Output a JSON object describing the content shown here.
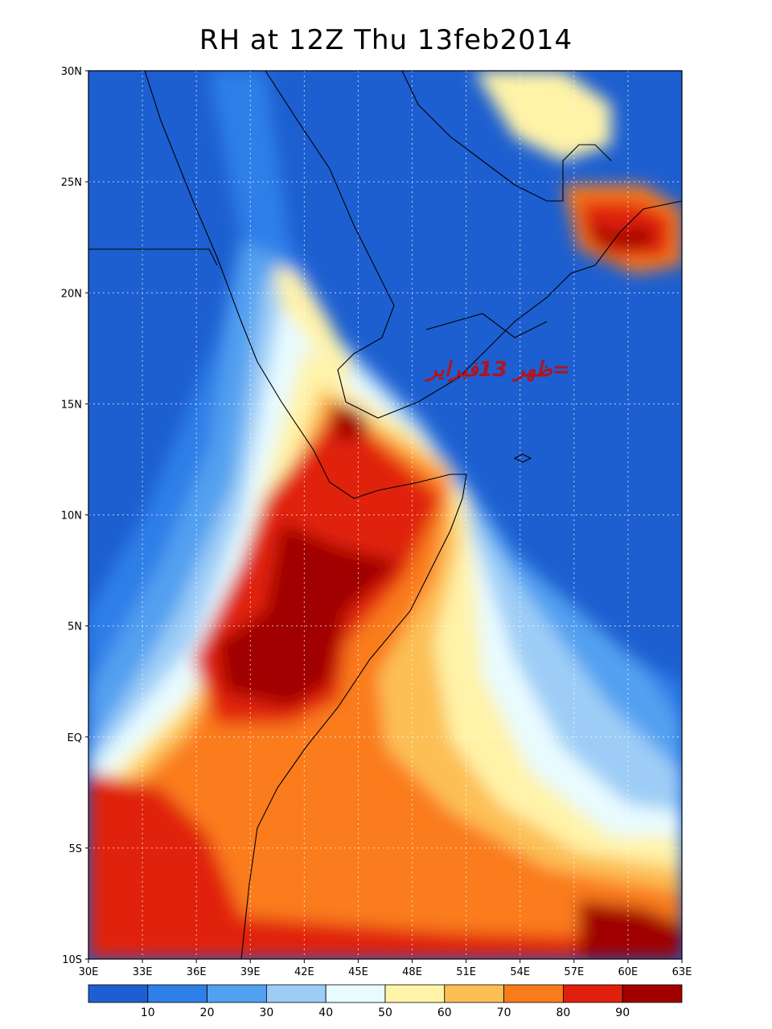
{
  "title": "RH at 12Z Thu 13feb2014",
  "overlay_label": "ظهر 13فبراير=",
  "overlay_color": "#b0141e",
  "map": {
    "lat_labels": [
      "30N",
      "25N",
      "20N",
      "15N",
      "10N",
      "5N",
      "EQ",
      "5S",
      "10S"
    ],
    "lon_labels": [
      "30E",
      "33E",
      "36E",
      "39E",
      "42E",
      "45E",
      "48E",
      "51E",
      "54E",
      "57E",
      "60E",
      "63E"
    ],
    "lat_range": [
      -10,
      30
    ],
    "lon_range": [
      30,
      63
    ],
    "grid": "dotted"
  },
  "colorbar": {
    "levels": [
      "10",
      "20",
      "30",
      "40",
      "50",
      "60",
      "70",
      "80",
      "90"
    ],
    "colors": [
      "#1d5fd0",
      "#2f7fe8",
      "#52a0f0",
      "#9dcdf6",
      "#e8fbff",
      "#fff3a8",
      "#fcbf55",
      "#fa7b1c",
      "#e0200c",
      "#a00000"
    ]
  }
}
